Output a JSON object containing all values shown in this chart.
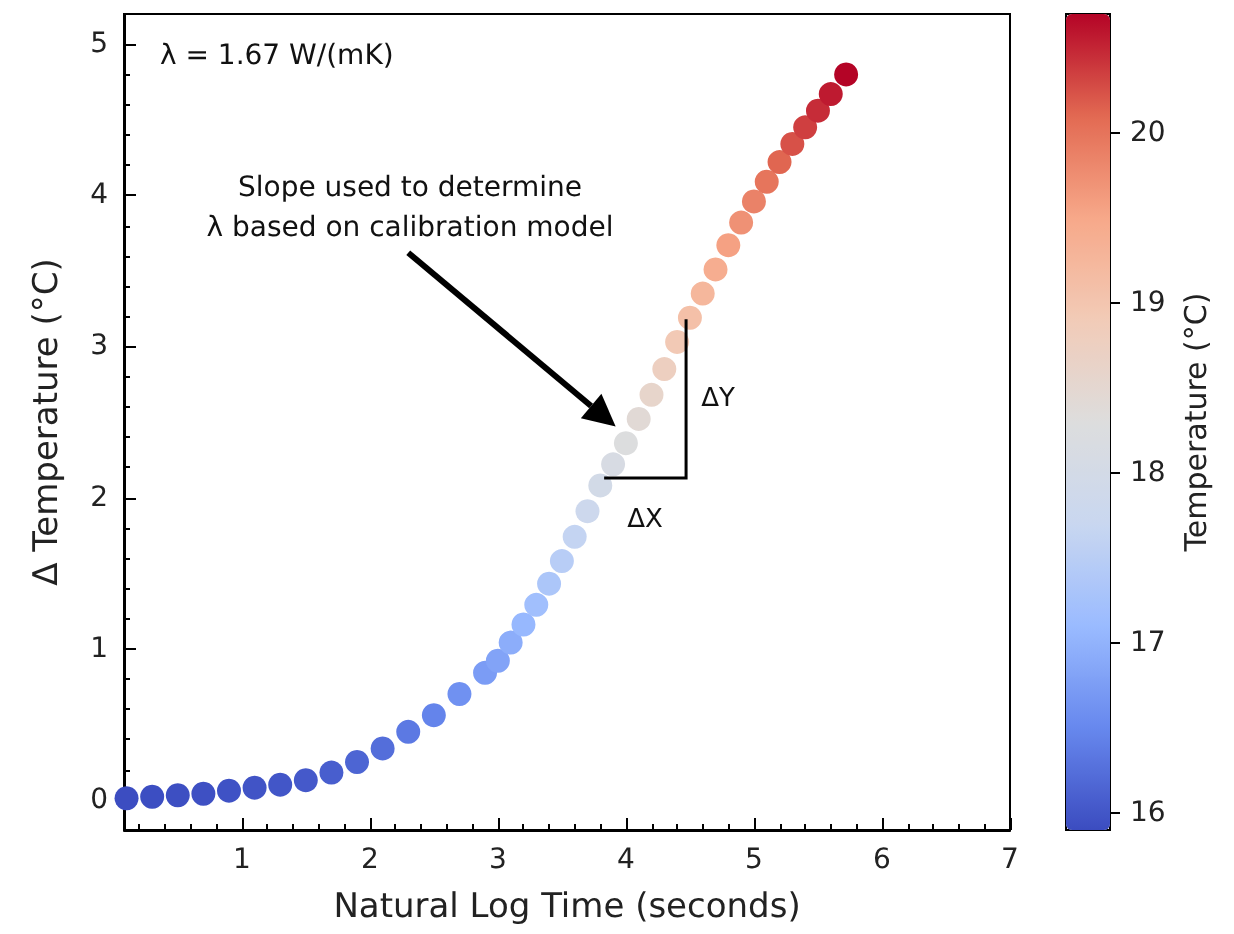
{
  "chart_data": {
    "type": "scatter",
    "xlabel": "Natural Log Time (seconds)",
    "ylabel": "Δ Temperature (°C)",
    "clabel": "Temperature (°C)",
    "x": [
      0.1,
      0.3,
      0.5,
      0.7,
      0.9,
      1.1,
      1.3,
      1.5,
      1.7,
      1.9,
      2.1,
      2.3,
      2.5,
      2.7,
      2.9,
      3.0,
      3.1,
      3.2,
      3.3,
      3.4,
      3.5,
      3.6,
      3.7,
      3.8,
      3.9,
      4.0,
      4.1,
      4.2,
      4.3,
      4.4,
      4.5,
      4.6,
      4.7,
      4.8,
      4.9,
      5.0,
      5.1,
      5.2,
      5.3,
      5.4,
      5.5,
      5.6,
      5.72
    ],
    "values": [
      0.01,
      0.02,
      0.03,
      0.04,
      0.06,
      0.08,
      0.1,
      0.13,
      0.18,
      0.25,
      0.34,
      0.45,
      0.56,
      0.7,
      0.84,
      0.92,
      1.04,
      1.16,
      1.29,
      1.43,
      1.58,
      1.74,
      1.91,
      2.08,
      2.22,
      2.36,
      2.52,
      2.68,
      2.85,
      3.03,
      3.19,
      3.35,
      3.51,
      3.67,
      3.82,
      3.96,
      4.09,
      4.22,
      4.34,
      4.45,
      4.56,
      4.67,
      4.8
    ],
    "cvalues": [
      15.91,
      15.92,
      15.93,
      15.94,
      15.96,
      15.98,
      16.0,
      16.03,
      16.08,
      16.15,
      16.24,
      16.35,
      16.46,
      16.6,
      16.74,
      16.82,
      16.94,
      17.06,
      17.19,
      17.33,
      17.48,
      17.64,
      17.81,
      17.98,
      18.12,
      18.26,
      18.42,
      18.58,
      18.75,
      18.93,
      19.09,
      19.25,
      19.41,
      19.57,
      19.72,
      19.86,
      19.99,
      20.12,
      20.24,
      20.35,
      20.46,
      20.57,
      20.7
    ],
    "clim": [
      15.9,
      20.7
    ],
    "cticks": [
      16,
      17,
      18,
      19,
      20
    ],
    "xlim": [
      0.08,
      7
    ],
    "xticks": [
      1,
      2,
      3,
      4,
      5,
      6,
      7
    ],
    "ylim": [
      -0.2,
      5.2
    ],
    "yticks": [
      0,
      1,
      2,
      3,
      4,
      5
    ],
    "grid": false,
    "marker": "circle",
    "annotations": [
      "λ = 1.67 W/(mK)",
      "Slope used to determine\nλ based on calibration model",
      "ΔX",
      "ΔY"
    ]
  }
}
